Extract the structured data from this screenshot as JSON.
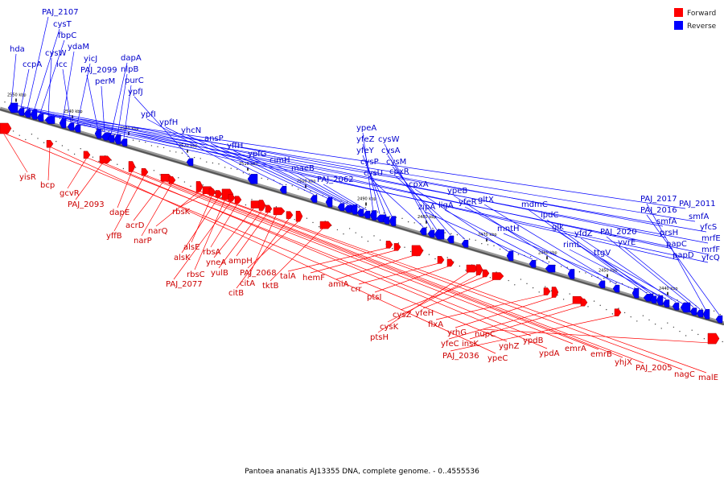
{
  "caption": "Pantoea ananatis AJ13355 DNA, complete genome. - 0..4555536",
  "legend": [
    {
      "label": "Forward",
      "color": "#ff0000"
    },
    {
      "label": "Reverse",
      "color": "#0000ff"
    }
  ],
  "colors": {
    "forward": "#ff0000",
    "reverse": "#0000ff",
    "forward_label": "#cc0000",
    "reverse_label": "#0000cc",
    "backbone": "#555555"
  },
  "ticks": [
    "2550 kbp",
    "2540 kbp",
    "2530 kbp",
    "2520 kbp",
    "2510 kbp",
    "2500 kbp",
    "2490 kbp",
    "2480 kbp",
    "2470 kbp",
    "2460 kbp",
    "2450 kbp",
    "2440 kbp"
  ],
  "reverse_genes": [
    "hda",
    "ccpA",
    "PAJ_2107",
    "cysT",
    "fbpC",
    "cysW",
    "ydaM",
    "icc",
    "yicJ",
    "PAJ_2099",
    "perM",
    "dapA",
    "nlpB",
    "purC",
    "ypfJ",
    "ypfI",
    "ypfH",
    "yhcN",
    "ansP",
    "yffH",
    "ypfG",
    "cimH",
    "maeB",
    "PAJ_2062",
    "ypeA",
    "yfeZ",
    "yfeY",
    "cysP",
    "cysU",
    "cysW",
    "cysA",
    "cysM",
    "cpxR",
    "cpxA",
    "zipA",
    "ligA",
    "ypeB",
    "yfeR",
    "gltX",
    "mntH",
    "mdmC",
    "ipdC",
    "glk",
    "rimL",
    "yfdZ",
    "ttgV",
    "PAJ_2020",
    "yvrE",
    "PAJ_2017",
    "PAJ_2016",
    "smfA",
    "prsH",
    "papC",
    "papD",
    "PAJ_2011",
    "smfA",
    "yfcS",
    "mrfE",
    "mrfF",
    "yfcQ"
  ],
  "forward_genes": [
    "yisR",
    "bcp",
    "gcvR",
    "PAJ_2093",
    "dapE",
    "yffB",
    "acrD",
    "narP",
    "narQ",
    "rbsK",
    "alsE",
    "alsK",
    "rbsC",
    "PAJ_2077",
    "rbsA",
    "yneA",
    "yulB",
    "ampH",
    "citA",
    "citB",
    "PAJ_2068",
    "tktB",
    "talA",
    "hemF",
    "amiA",
    "crr",
    "ptsI",
    "ptsH",
    "cysK",
    "cysZ",
    "yfeH",
    "flxA",
    "yrhG",
    "yfeC",
    "insK",
    "PAJ_2036",
    "nupC",
    "yghZ",
    "ypeC",
    "ypdB",
    "ypdA",
    "emrA",
    "emrB",
    "yhjX",
    "PAJ_2005",
    "nagC",
    "malE"
  ]
}
